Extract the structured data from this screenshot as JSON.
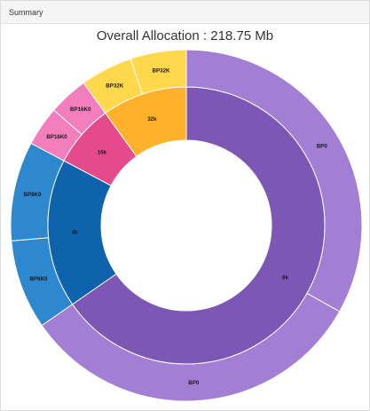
{
  "panel": {
    "title": "Summary"
  },
  "chart_data": {
    "type": "sunburst",
    "title_prefix": "Overall Allocation : ",
    "title_value": "218.75 Mb",
    "inner": [
      {
        "label": "8k",
        "value": 143.0,
        "color": "#7d57b5"
      },
      {
        "label": "4k",
        "value": 38.0,
        "color": "#0e63ac"
      },
      {
        "label": "16k",
        "value": 16.0,
        "color": "#e44a8c"
      },
      {
        "label": "32k",
        "value": 21.75,
        "color": "#ffb12b"
      }
    ],
    "outer": [
      {
        "label": "BP0",
        "value": 72.5,
        "color": "#a27fd4"
      },
      {
        "label": "BP0",
        "value": 70.5,
        "color": "#a27fd4"
      },
      {
        "label": "BP6K0",
        "value": 18.0,
        "color": "#2e88cf"
      },
      {
        "label": "BP8K0",
        "value": 20.0,
        "color": "#2e88cf"
      },
      {
        "label": "BP16K0",
        "value": 8.0,
        "color": "#f37ebd"
      },
      {
        "label": "BP16K0",
        "value": 8.0,
        "color": "#f37ebd"
      },
      {
        "label": "BP32K",
        "value": 10.5,
        "color": "#ffd84c"
      },
      {
        "label": "BP32K",
        "value": 11.25,
        "color": "#ffd84c"
      }
    ]
  }
}
